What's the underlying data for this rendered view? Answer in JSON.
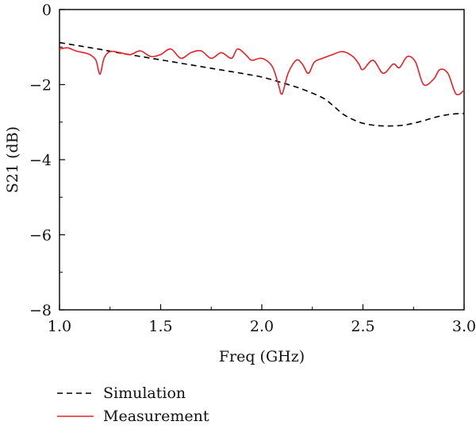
{
  "chart_data": {
    "type": "line",
    "title": "",
    "xlabel": "Freq (GHz)",
    "ylabel": "S21 (dB)",
    "xlim": [
      1.0,
      3.0
    ],
    "ylim": [
      -8,
      0
    ],
    "x_ticks": [
      1.0,
      1.5,
      2.0,
      2.5,
      3.0
    ],
    "x_tick_labels": [
      "1.0",
      "1.5",
      "2.0",
      "2.5",
      "3.0"
    ],
    "y_ticks": [
      0,
      -2,
      -4,
      -6,
      -8
    ],
    "y_tick_labels": [
      "0",
      "−2",
      "−4",
      "−6",
      "−8"
    ],
    "grid": false,
    "legend_position": "bottom-left, below plot",
    "series": [
      {
        "name": "Simulation",
        "color": "#000000",
        "style": "dashed",
        "x": [
          1.0,
          1.1,
          1.2,
          1.3,
          1.4,
          1.5,
          1.6,
          1.7,
          1.8,
          1.9,
          2.0,
          2.1,
          2.2,
          2.3,
          2.35,
          2.4,
          2.45,
          2.5,
          2.55,
          2.6,
          2.65,
          2.7,
          2.75,
          2.8,
          2.85,
          2.9,
          2.95,
          3.0
        ],
        "y": [
          -0.88,
          -0.97,
          -1.06,
          -1.16,
          -1.25,
          -1.34,
          -1.43,
          -1.52,
          -1.61,
          -1.7,
          -1.8,
          -1.95,
          -2.12,
          -2.35,
          -2.55,
          -2.78,
          -2.93,
          -3.03,
          -3.08,
          -3.1,
          -3.1,
          -3.08,
          -3.03,
          -2.96,
          -2.88,
          -2.82,
          -2.78,
          -2.77
        ]
      },
      {
        "name": "Measurement",
        "color": "#e8202a",
        "style": "solid",
        "x": [
          1.0,
          1.04,
          1.08,
          1.12,
          1.15,
          1.18,
          1.2,
          1.22,
          1.25,
          1.3,
          1.35,
          1.4,
          1.45,
          1.5,
          1.55,
          1.6,
          1.65,
          1.7,
          1.75,
          1.8,
          1.85,
          1.88,
          1.92,
          1.95,
          2.0,
          2.05,
          2.08,
          2.1,
          2.13,
          2.17,
          2.2,
          2.23,
          2.26,
          2.3,
          2.35,
          2.4,
          2.45,
          2.48,
          2.5,
          2.55,
          2.6,
          2.65,
          2.68,
          2.72,
          2.76,
          2.8,
          2.85,
          2.88,
          2.92,
          2.96,
          3.0
        ],
        "y": [
          -1.05,
          -1.02,
          -1.1,
          -1.15,
          -1.2,
          -1.35,
          -1.72,
          -1.3,
          -1.12,
          -1.15,
          -1.2,
          -1.1,
          -1.25,
          -1.2,
          -1.05,
          -1.3,
          -1.15,
          -1.1,
          -1.3,
          -1.15,
          -1.3,
          -1.05,
          -1.2,
          -1.35,
          -1.3,
          -1.5,
          -1.95,
          -2.25,
          -1.7,
          -1.35,
          -1.45,
          -1.7,
          -1.4,
          -1.3,
          -1.2,
          -1.12,
          -1.25,
          -1.45,
          -1.6,
          -1.35,
          -1.7,
          -1.45,
          -1.55,
          -1.25,
          -1.4,
          -2.0,
          -1.85,
          -1.6,
          -1.7,
          -2.25,
          -2.15
        ]
      }
    ]
  }
}
